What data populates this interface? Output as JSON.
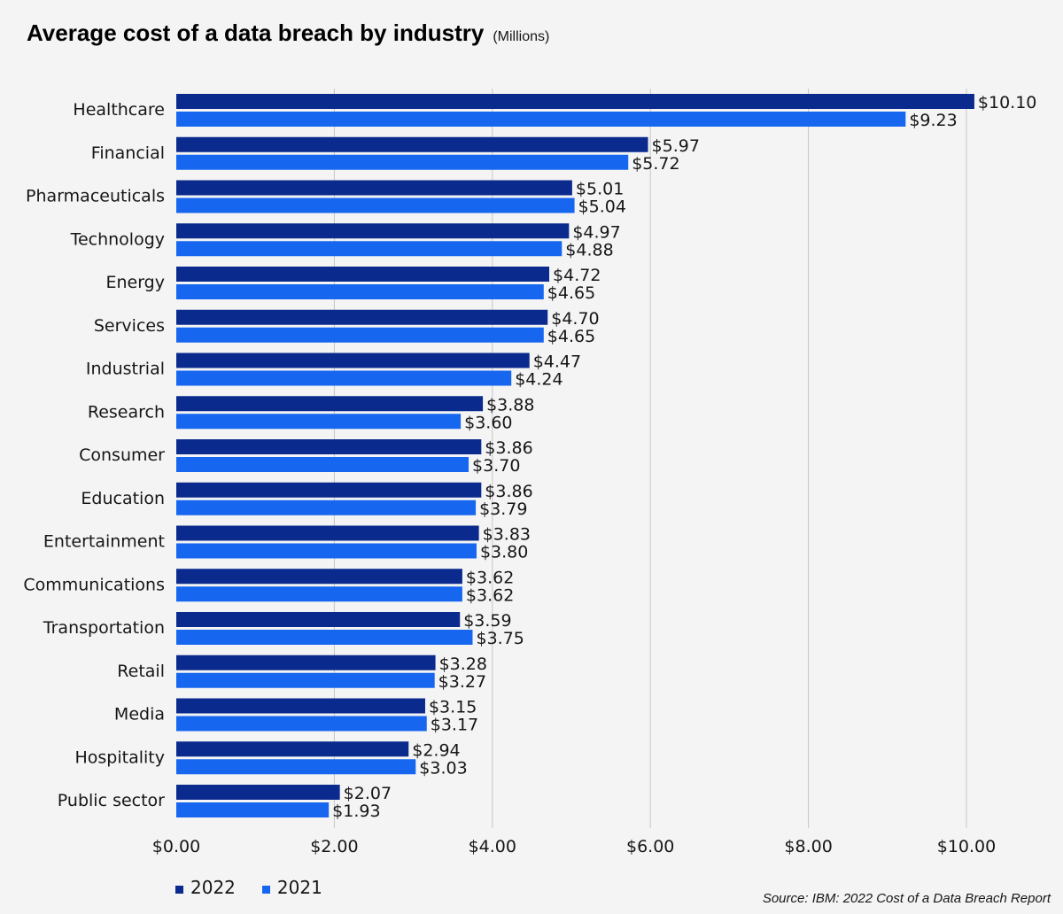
{
  "header": {
    "title": "Average cost of a data breach by industry",
    "subtitle": "(Millions)"
  },
  "colors": {
    "series_2022": "#0b2a8e",
    "series_2021": "#1766f0",
    "grid": "#c6c6c6",
    "background": "#f4f4f4"
  },
  "source": "Source: IBM: 2022 Cost of a Data Breach Report",
  "chart_data": {
    "type": "bar",
    "orientation": "horizontal",
    "title": "Average cost of a data breach by industry",
    "subtitle": "(Millions)",
    "categories": [
      "Healthcare",
      "Financial",
      "Pharmaceuticals",
      "Technology",
      "Energy",
      "Services",
      "Industrial",
      "Research",
      "Consumer",
      "Education",
      "Entertainment",
      "Communications",
      "Transportation",
      "Retail",
      "Media",
      "Hospitality",
      "Public sector"
    ],
    "series": [
      {
        "name": "2022",
        "values": [
          10.1,
          5.97,
          5.01,
          4.97,
          4.72,
          4.7,
          4.47,
          3.88,
          3.86,
          3.86,
          3.83,
          3.62,
          3.59,
          3.28,
          3.15,
          2.94,
          2.07
        ]
      },
      {
        "name": "2021",
        "values": [
          9.23,
          5.72,
          5.04,
          4.88,
          4.65,
          4.65,
          4.24,
          3.6,
          3.7,
          3.79,
          3.8,
          3.62,
          3.75,
          3.27,
          3.17,
          3.03,
          1.93
        ]
      }
    ],
    "value_labels": [
      [
        "$10.10",
        "$5.97",
        "$5.01",
        "$4.97",
        "$4.72",
        "$4.70",
        "$4.47",
        "$3.88",
        "$3.86",
        "$3.86",
        "$3.83",
        "$3.62",
        "$3.59",
        "$3.28",
        "$3.15",
        "$2.94",
        "$2.07"
      ],
      [
        "$9.23",
        "$5.72",
        "$5.04",
        "$4.88",
        "$4.65",
        "$4.65",
        "$4.24",
        "$3.60",
        "$3.70",
        "$3.79",
        "$3.80",
        "$3.62",
        "$3.75",
        "$3.27",
        "$3.17",
        "$3.03",
        "$1.93"
      ]
    ],
    "xticks": [
      0,
      2,
      4,
      6,
      8,
      10
    ],
    "xtick_labels": [
      "$0.00",
      "$2.00",
      "$4.00",
      "$6.00",
      "$8.00",
      "$10.00"
    ],
    "xlim": [
      0,
      10.2
    ],
    "grid": true,
    "legend_position": "bottom-left"
  }
}
